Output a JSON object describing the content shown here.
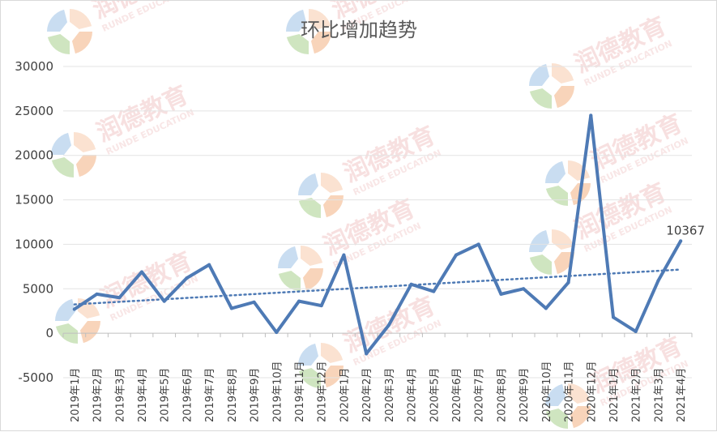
{
  "watermark": {
    "brand": "润德教育",
    "sub": "RUNDE EDUCATION"
  },
  "chart_data": {
    "type": "line",
    "title": "环比增加趋势",
    "xlabel": "",
    "ylabel": "",
    "ylim": [
      -5000,
      30000
    ],
    "yticks": [
      -5000,
      0,
      5000,
      10000,
      15000,
      20000,
      25000,
      30000
    ],
    "grid": true,
    "legend": "none",
    "categories": [
      "2019年1月",
      "2019年2月",
      "2019年3月",
      "2019年4月",
      "2019年5月",
      "2019年6月",
      "2019年7月",
      "2019年8月",
      "2019年9月",
      "2019年10月",
      "2019年11月",
      "2019年12月",
      "2020年1月",
      "2020年2月",
      "2020年3月",
      "2020年4月",
      "2020年5月",
      "2020年6月",
      "2020年7月",
      "2020年8月",
      "2020年9月",
      "2020年10月",
      "2020年11月",
      "2020年12月",
      "2021年1月",
      "2021年2月",
      "2021年3月",
      "2021年4月"
    ],
    "series": [
      {
        "values": [
          2700,
          4400,
          4000,
          6900,
          3600,
          6200,
          7700,
          2800,
          3500,
          100,
          3600,
          3100,
          8800,
          -2300,
          900,
          5500,
          4700,
          8800,
          10000,
          4400,
          5000,
          2800,
          5700,
          24500,
          1800,
          200,
          5900,
          10367
        ],
        "color": "#4e7ab5"
      }
    ],
    "trendline": {
      "type": "linear",
      "style": "dotted",
      "color": "#4e7ab5"
    },
    "data_labels": [
      {
        "index": 27,
        "text": "10367"
      }
    ]
  }
}
